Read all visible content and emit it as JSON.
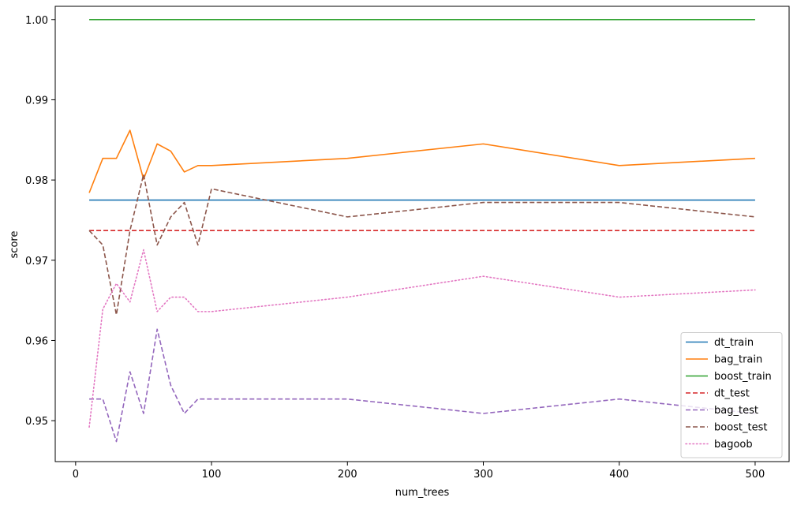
{
  "chart_data": {
    "type": "line",
    "xlabel": "num_trees",
    "ylabel": "score",
    "xlim": [
      -15,
      525
    ],
    "ylim": [
      0.9449,
      1.00165
    ],
    "xticks": [
      0,
      100,
      200,
      300,
      400,
      500
    ],
    "yticks": [
      0.95,
      0.96,
      0.97,
      0.98,
      0.99,
      1.0
    ],
    "xtick_labels": [
      "0",
      "100",
      "200",
      "300",
      "400",
      "500"
    ],
    "ytick_labels": [
      "0.95",
      "0.96",
      "0.97",
      "0.98",
      "0.99",
      "1.00"
    ],
    "grid": false,
    "legend_position": "lower-right",
    "x": [
      10,
      20,
      30,
      40,
      50,
      60,
      70,
      80,
      90,
      100,
      200,
      300,
      400,
      500
    ],
    "series": [
      {
        "name": "dt_train",
        "color": "#1f77b4",
        "dash": "solid",
        "values": [
          0.9775,
          0.9775,
          0.9775,
          0.9775,
          0.9775,
          0.9775,
          0.9775,
          0.9775,
          0.9775,
          0.9775,
          0.9775,
          0.9775,
          0.9775,
          0.9775
        ]
      },
      {
        "name": "bag_train",
        "color": "#ff7f0e",
        "dash": "solid",
        "values": [
          0.9784,
          0.9827,
          0.9827,
          0.9862,
          0.9801,
          0.9845,
          0.9836,
          0.981,
          0.9818,
          0.9818,
          0.9827,
          0.9845,
          0.9818,
          0.9827
        ]
      },
      {
        "name": "boost_train",
        "color": "#2ca02c",
        "dash": "solid",
        "values": [
          1.0,
          1.0,
          1.0,
          1.0,
          1.0,
          1.0,
          1.0,
          1.0,
          1.0,
          1.0,
          1.0,
          1.0,
          1.0,
          1.0
        ]
      },
      {
        "name": "dt_test",
        "color": "#d62728",
        "dash": "dashed",
        "values": [
          0.9737,
          0.9737,
          0.9737,
          0.9737,
          0.9737,
          0.9737,
          0.9737,
          0.9737,
          0.9737,
          0.9737,
          0.9737,
          0.9737,
          0.9737,
          0.9737
        ]
      },
      {
        "name": "bag_test",
        "color": "#9467bd",
        "dash": "dashed",
        "values": [
          0.9527,
          0.9527,
          0.9474,
          0.9561,
          0.9509,
          0.9614,
          0.9544,
          0.9509,
          0.9527,
          0.9527,
          0.9527,
          0.9509,
          0.9527,
          0.9509
        ]
      },
      {
        "name": "boost_test",
        "color": "#8c564b",
        "dash": "dashed",
        "values": [
          0.9737,
          0.9719,
          0.9632,
          0.9737,
          0.9807,
          0.9719,
          0.9754,
          0.9772,
          0.9719,
          0.9789,
          0.9754,
          0.9772,
          0.9772,
          0.9754
        ]
      },
      {
        "name": "bagoob",
        "color": "#e377c2",
        "dash": "dotted",
        "values": [
          0.9492,
          0.9639,
          0.9671,
          0.9648,
          0.9713,
          0.9636,
          0.9654,
          0.9654,
          0.9636,
          0.9636,
          0.9654,
          0.968,
          0.9654,
          0.9663
        ]
      }
    ]
  }
}
